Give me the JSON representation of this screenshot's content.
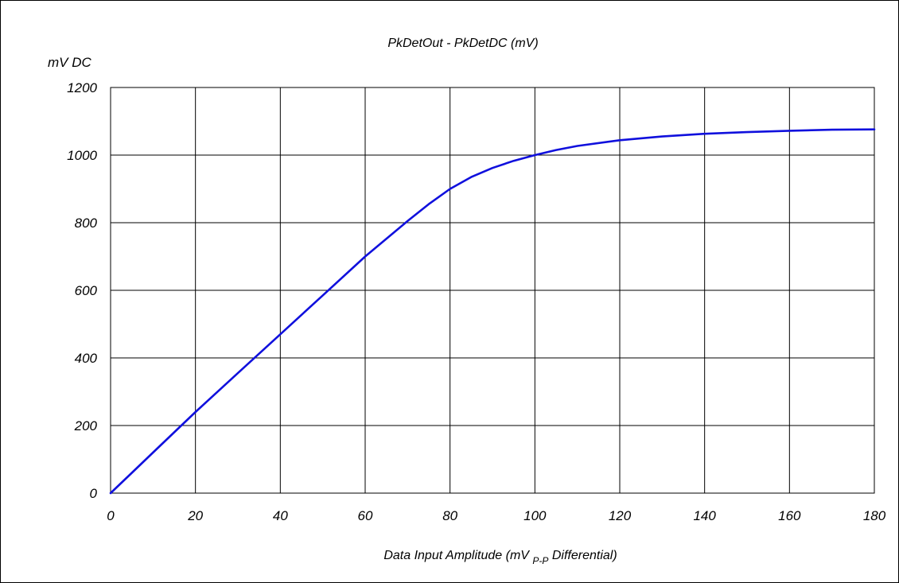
{
  "chart_data": {
    "type": "line",
    "title": "PkDetOut - PkDetDC (mV)",
    "ylabel": "mV DC",
    "xlabel_parts": {
      "prefix": "Data Input Amplitude (mV ",
      "subscript": "P-P",
      "suffix": " Differential)"
    },
    "xlim": [
      0,
      180
    ],
    "ylim": [
      0,
      1200
    ],
    "x_ticks": [
      0,
      20,
      40,
      60,
      80,
      100,
      120,
      140,
      160,
      180
    ],
    "y_ticks": [
      0,
      200,
      400,
      600,
      800,
      1000,
      1200
    ],
    "grid": true,
    "legend": "none",
    "colors": {
      "line": "#1010dd",
      "grid": "#000000",
      "frame": "#000000"
    },
    "series": [
      {
        "x": [
          0,
          5,
          10,
          20,
          30,
          40,
          50,
          60,
          70,
          75,
          80,
          85,
          90,
          95,
          100,
          105,
          110,
          120,
          130,
          140,
          150,
          160,
          170,
          180
        ],
        "y": [
          0,
          60,
          120,
          240,
          355,
          470,
          585,
          700,
          805,
          855,
          900,
          935,
          962,
          983,
          1000,
          1015,
          1027,
          1044,
          1055,
          1063,
          1068,
          1072,
          1075,
          1076
        ]
      }
    ]
  }
}
